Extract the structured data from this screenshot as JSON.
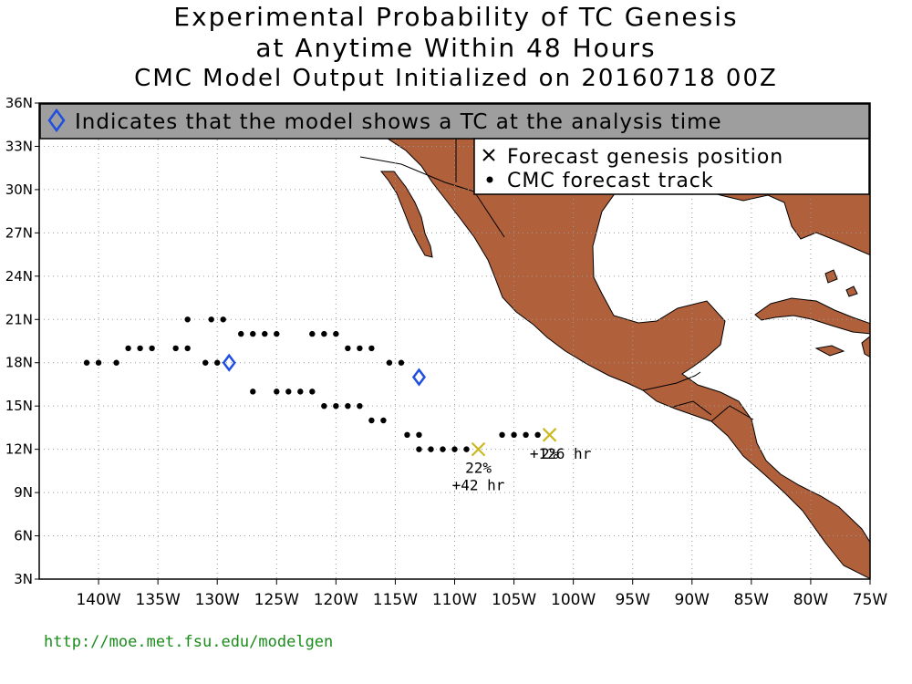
{
  "title": {
    "line1": "Experimental Probability of TC Genesis",
    "line2": "at Anytime Within 48 Hours",
    "line3": "CMC Model Output Initialized on 20160718 00Z"
  },
  "banner": {
    "text": "Indicates that the model shows a TC at the analysis time",
    "icon": "blue-diamond-icon"
  },
  "legend": {
    "genesis_label": "Forecast genesis position",
    "track_label": "CMC forecast track",
    "genesis_icon": "x-mark-icon",
    "track_icon": "dot-icon"
  },
  "axes": {
    "lon_range": [
      -145,
      -75
    ],
    "lat_range": [
      3,
      36
    ],
    "lon_ticks": [
      {
        "value": -140,
        "label": "140W"
      },
      {
        "value": -135,
        "label": "135W"
      },
      {
        "value": -130,
        "label": "130W"
      },
      {
        "value": -125,
        "label": "125W"
      },
      {
        "value": -120,
        "label": "120W"
      },
      {
        "value": -115,
        "label": "115W"
      },
      {
        "value": -110,
        "label": "110W"
      },
      {
        "value": -105,
        "label": "105W"
      },
      {
        "value": -100,
        "label": "100W"
      },
      {
        "value": -95,
        "label": "95W"
      },
      {
        "value": -90,
        "label": "90W"
      },
      {
        "value": -85,
        "label": "85W"
      },
      {
        "value": -80,
        "label": "80W"
      },
      {
        "value": -75,
        "label": "75W"
      }
    ],
    "lat_ticks": [
      {
        "value": 3,
        "label": "3N"
      },
      {
        "value": 6,
        "label": "6N"
      },
      {
        "value": 9,
        "label": "9N"
      },
      {
        "value": 12,
        "label": "12N"
      },
      {
        "value": 15,
        "label": "15N"
      },
      {
        "value": 18,
        "label": "18N"
      },
      {
        "value": 21,
        "label": "21N"
      },
      {
        "value": 24,
        "label": "24N"
      },
      {
        "value": 27,
        "label": "27N"
      },
      {
        "value": 30,
        "label": "30N"
      },
      {
        "value": 33,
        "label": "33N"
      },
      {
        "value": 36,
        "label": "36N"
      }
    ],
    "grid": true
  },
  "colors": {
    "land": "#b0603a",
    "ocean": "#ffffff",
    "banner_bg": "#9e9e9e",
    "diamond": "#1f4fe0",
    "genesis_x": "#c9b820",
    "track_dot": "#000000",
    "url": "#1a8c1a"
  },
  "analysis_tcs": [
    {
      "lon": -129,
      "lat": 18
    },
    {
      "lon": -113,
      "lat": 17
    }
  ],
  "tracks": [
    {
      "points": [
        [
          -141,
          18
        ],
        [
          -140,
          18
        ],
        [
          -138.5,
          18
        ],
        [
          -137.5,
          19
        ],
        [
          -136.5,
          19
        ],
        [
          -135.5,
          19
        ],
        [
          -133.5,
          19
        ],
        [
          -132.5,
          19
        ],
        [
          -132.5,
          21
        ],
        [
          -130.5,
          21
        ],
        [
          -129.5,
          21
        ]
      ]
    },
    {
      "points": [
        [
          -131,
          18
        ],
        [
          -130,
          18
        ],
        [
          -128,
          20
        ],
        [
          -127,
          20
        ],
        [
          -126,
          20
        ],
        [
          -125,
          20
        ],
        [
          -122,
          20
        ],
        [
          -121,
          20
        ],
        [
          -120,
          20
        ],
        [
          -119,
          19
        ],
        [
          -118,
          19
        ],
        [
          -117,
          19
        ],
        [
          -115.5,
          18
        ],
        [
          -114.5,
          18
        ]
      ]
    },
    {
      "points": [
        [
          -127,
          16
        ],
        [
          -125,
          16
        ],
        [
          -124,
          16
        ],
        [
          -123,
          16
        ],
        [
          -122,
          16
        ],
        [
          -121,
          15
        ],
        [
          -120,
          15
        ],
        [
          -119,
          15
        ],
        [
          -118,
          15
        ],
        [
          -117,
          14
        ],
        [
          -116,
          14
        ],
        [
          -114,
          13
        ],
        [
          -113,
          13
        ],
        [
          -113,
          12
        ],
        [
          -112,
          12
        ],
        [
          -111,
          12
        ],
        [
          -110,
          12
        ],
        [
          -109,
          12
        ]
      ]
    },
    {
      "points": [
        [
          -106,
          13
        ],
        [
          -105,
          13
        ],
        [
          -104,
          13
        ],
        [
          -103,
          13
        ]
      ]
    }
  ],
  "genesis": [
    {
      "lon": -108,
      "lat": 12,
      "probability": "22%",
      "lead": "+42 hr"
    },
    {
      "lon": -102,
      "lat": 13,
      "probability": "2%",
      "lead": "+126 hr"
    }
  ],
  "footer": {
    "url": "http://moe.met.fsu.edu/modelgen"
  }
}
